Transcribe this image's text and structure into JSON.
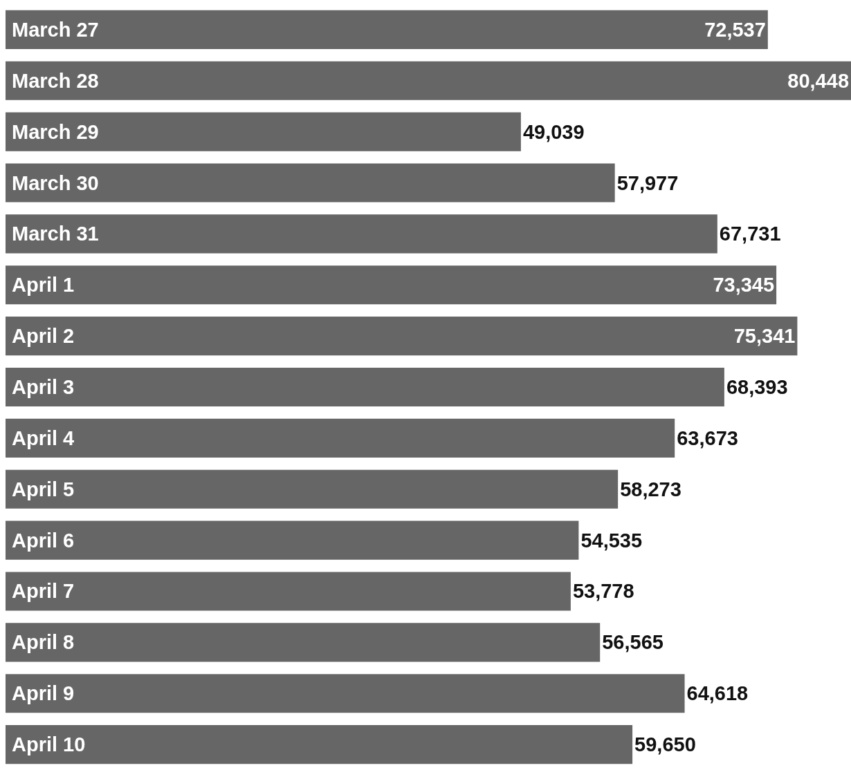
{
  "chart_data": {
    "type": "bar",
    "orientation": "horizontal",
    "categories": [
      "March 27",
      "March 28",
      "March 29",
      "March 30",
      "March 31",
      "April 1",
      "April 2",
      "April 3",
      "April 4",
      "April 5",
      "April 6",
      "April 7",
      "April 8",
      "April 9",
      "April 10"
    ],
    "values": [
      72537,
      80448,
      49039,
      57977,
      67731,
      73345,
      75341,
      68393,
      63673,
      58273,
      54535,
      53778,
      56565,
      64618,
      59650
    ],
    "value_labels": [
      "72,537",
      "80,448",
      "49,039",
      "57,977",
      "67,731",
      "73,345",
      "75,341",
      "68,393",
      "63,673",
      "58,273",
      "54,535",
      "53,778",
      "56,565",
      "64,618",
      "59,650"
    ],
    "color": "#666666"
  }
}
